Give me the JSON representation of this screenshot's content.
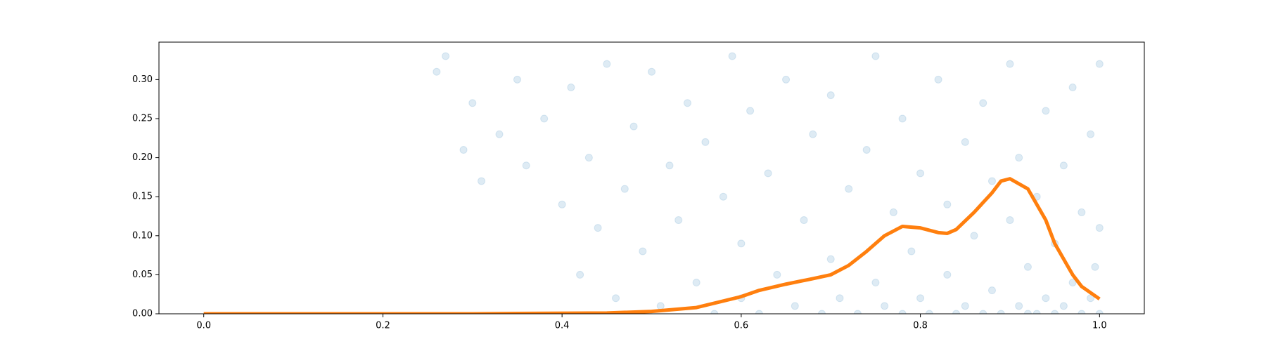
{
  "chart_data": {
    "type": "scatter",
    "xlim": [
      -0.05,
      1.05
    ],
    "ylim": [
      0,
      0.348
    ],
    "xticks": [
      {
        "value": 0,
        "label": "0.0"
      },
      {
        "value": 0.2,
        "label": "0.2"
      },
      {
        "value": 0.4,
        "label": "0.4"
      },
      {
        "value": 0.6,
        "label": "0.6"
      },
      {
        "value": 0.8,
        "label": "0.8"
      },
      {
        "value": 1,
        "label": "1.0"
      }
    ],
    "yticks": [
      {
        "value": 0,
        "label": "0.00"
      },
      {
        "value": 0.05,
        "label": "0.05"
      },
      {
        "value": 0.1,
        "label": "0.10"
      },
      {
        "value": 0.15,
        "label": "0.15"
      },
      {
        "value": 0.2,
        "label": "0.20"
      },
      {
        "value": 0.25,
        "label": "0.25"
      },
      {
        "value": 0.3,
        "label": "0.30"
      }
    ],
    "series": [
      {
        "type": "scatter",
        "color": "#1f77b4",
        "opacity": 0.15,
        "x": [
          0.26,
          0.27,
          0.29,
          0.3,
          0.31,
          0.33,
          0.35,
          0.36,
          0.38,
          0.4,
          0.41,
          0.42,
          0.43,
          0.44,
          0.45,
          0.46,
          0.47,
          0.48,
          0.49,
          0.5,
          0.51,
          0.52,
          0.53,
          0.54,
          0.55,
          0.56,
          0.57,
          0.58,
          0.59,
          0.6,
          0.6,
          0.61,
          0.62,
          0.63,
          0.64,
          0.65,
          0.66,
          0.67,
          0.68,
          0.69,
          0.7,
          0.7,
          0.71,
          0.72,
          0.73,
          0.74,
          0.75,
          0.75,
          0.76,
          0.77,
          0.78,
          0.78,
          0.79,
          0.8,
          0.8,
          0.81,
          0.82,
          0.83,
          0.83,
          0.84,
          0.85,
          0.85,
          0.86,
          0.87,
          0.87,
          0.88,
          0.88,
          0.89,
          0.9,
          0.9,
          0.91,
          0.91,
          0.92,
          0.92,
          0.93,
          0.93,
          0.94,
          0.94,
          0.95,
          0.95,
          0.96,
          0.96,
          0.97,
          0.97,
          0.98,
          0.98,
          0.99,
          0.99,
          1.0,
          1.0,
          1.0,
          0.995
        ],
        "values": [
          0.31,
          0.33,
          0.21,
          0.27,
          0.17,
          0.23,
          0.3,
          0.19,
          0.25,
          0.14,
          0.29,
          0.05,
          0.2,
          0.11,
          0.32,
          0.02,
          0.16,
          0.24,
          0.08,
          0.31,
          0.01,
          0.19,
          0.12,
          0.27,
          0.04,
          0.22,
          0.0,
          0.15,
          0.33,
          0.02,
          0.09,
          0.26,
          0.0,
          0.18,
          0.05,
          0.3,
          0.01,
          0.12,
          0.23,
          0.0,
          0.07,
          0.28,
          0.02,
          0.16,
          0.0,
          0.21,
          0.04,
          0.33,
          0.01,
          0.13,
          0.0,
          0.25,
          0.08,
          0.02,
          0.18,
          0.0,
          0.3,
          0.05,
          0.14,
          0.0,
          0.22,
          0.01,
          0.1,
          0.0,
          0.27,
          0.03,
          0.17,
          0.0,
          0.12,
          0.32,
          0.01,
          0.2,
          0.0,
          0.06,
          0.15,
          0.0,
          0.26,
          0.02,
          0.09,
          0.0,
          0.19,
          0.01,
          0.04,
          0.29,
          0.0,
          0.13,
          0.02,
          0.23,
          0.0,
          0.11,
          0.32,
          0.06
        ]
      },
      {
        "type": "line",
        "color": "#ff7f0e",
        "width": 5,
        "x": [
          0,
          0.1,
          0.2,
          0.3,
          0.35,
          0.45,
          0.5,
          0.55,
          0.6,
          0.62,
          0.65,
          0.68,
          0.7,
          0.72,
          0.74,
          0.75,
          0.76,
          0.78,
          0.8,
          0.82,
          0.83,
          0.84,
          0.86,
          0.88,
          0.89,
          0.9,
          0.92,
          0.94,
          0.95,
          0.97,
          0.98,
          1.0
        ],
        "values": [
          0,
          0,
          0,
          0,
          0.0005,
          0.001,
          0.003,
          0.008,
          0.022,
          0.03,
          0.038,
          0.045,
          0.05,
          0.062,
          0.08,
          0.09,
          0.1,
          0.112,
          0.11,
          0.104,
          0.103,
          0.108,
          0.13,
          0.155,
          0.17,
          0.173,
          0.16,
          0.12,
          0.09,
          0.05,
          0.035,
          0.019
        ]
      }
    ]
  }
}
